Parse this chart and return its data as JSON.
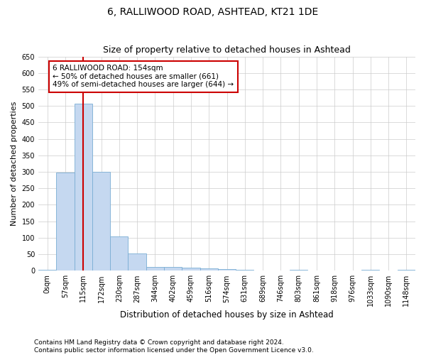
{
  "title": "6, RALLIWOOD ROAD, ASHTEAD, KT21 1DE",
  "subtitle": "Size of property relative to detached houses in Ashtead",
  "xlabel": "Distribution of detached houses by size in Ashtead",
  "ylabel": "Number of detached properties",
  "bar_color": "#c5d8f0",
  "bar_edge_color": "#7aadd4",
  "bar_categories": [
    "0sqm",
    "57sqm",
    "115sqm",
    "172sqm",
    "230sqm",
    "287sqm",
    "344sqm",
    "402sqm",
    "459sqm",
    "516sqm",
    "574sqm",
    "631sqm",
    "689sqm",
    "746sqm",
    "803sqm",
    "861sqm",
    "918sqm",
    "976sqm",
    "1033sqm",
    "1090sqm",
    "1148sqm"
  ],
  "bar_values": [
    3,
    297,
    507,
    300,
    105,
    53,
    12,
    12,
    10,
    7,
    5,
    2,
    0,
    0,
    3,
    0,
    0,
    0,
    2,
    0,
    2
  ],
  "property_bin_index": 2,
  "vline_color": "#cc0000",
  "annotation_text": "6 RALLIWOOD ROAD: 154sqm\n← 50% of detached houses are smaller (661)\n49% of semi-detached houses are larger (644) →",
  "annotation_box_color": "#ffffff",
  "annotation_box_edge_color": "#cc0000",
  "ylim": [
    0,
    650
  ],
  "yticks": [
    0,
    50,
    100,
    150,
    200,
    250,
    300,
    350,
    400,
    450,
    500,
    550,
    600,
    650
  ],
  "grid_color": "#cccccc",
  "background_color": "#ffffff",
  "footer": "Contains HM Land Registry data © Crown copyright and database right 2024.\nContains public sector information licensed under the Open Government Licence v3.0.",
  "title_fontsize": 10,
  "subtitle_fontsize": 9,
  "xlabel_fontsize": 8.5,
  "ylabel_fontsize": 8,
  "tick_fontsize": 7,
  "annotation_fontsize": 7.5,
  "footer_fontsize": 6.5
}
